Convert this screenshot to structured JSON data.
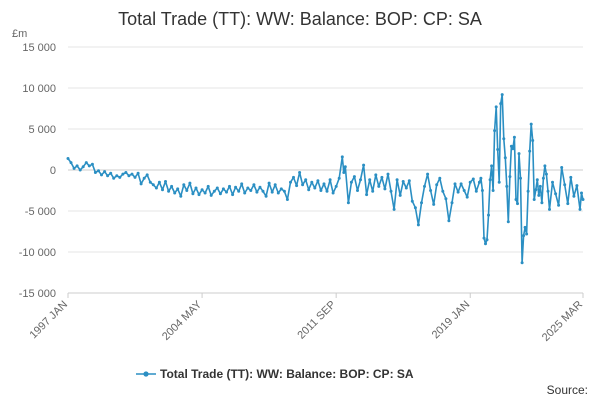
{
  "chart_data": {
    "type": "line",
    "title": "Total Trade (TT): WW: Balance: BOP: CP: SA",
    "unit_label": "£m",
    "source_label": "Source:",
    "xlabel": "",
    "ylabel": "",
    "ylim": [
      -15000,
      15000
    ],
    "y_ticks": [
      15000,
      10000,
      5000,
      0,
      -5000,
      -10000,
      -15000
    ],
    "y_tick_labels": [
      "15 000",
      "10 000",
      "5 000",
      "0",
      "-5 000",
      "-10 000",
      "-15 000"
    ],
    "x_range": [
      "1997-01",
      "2025-03"
    ],
    "x_ticks": [
      "1997-01",
      "2004-05",
      "2011-09",
      "2019-01",
      "2025-03"
    ],
    "x_tick_labels": [
      "1997 JAN",
      "2004 MAY",
      "2011 SEP",
      "2019 JAN",
      "2025 MAR"
    ],
    "grid": true,
    "legend_position": "bottom-center",
    "colors": {
      "series": "#2b8fc3",
      "text": "#333333",
      "muted": "#666666",
      "grid": "#e6e6e6"
    },
    "series": [
      {
        "name": "Total Trade (TT): WW: Balance: BOP: CP: SA",
        "points": [
          [
            "1997-01",
            1400
          ],
          [
            "1997-03",
            900
          ],
          [
            "1997-05",
            200
          ],
          [
            "1997-07",
            500
          ],
          [
            "1997-09",
            0
          ],
          [
            "1997-11",
            400
          ],
          [
            "1998-01",
            900
          ],
          [
            "1998-03",
            500
          ],
          [
            "1998-05",
            700
          ],
          [
            "1998-07",
            -300
          ],
          [
            "1998-09",
            -100
          ],
          [
            "1998-11",
            -600
          ],
          [
            "1999-01",
            -200
          ],
          [
            "1999-03",
            -700
          ],
          [
            "1999-05",
            -400
          ],
          [
            "1999-07",
            -1000
          ],
          [
            "1999-09",
            -700
          ],
          [
            "1999-11",
            -900
          ],
          [
            "2000-01",
            -500
          ],
          [
            "2000-03",
            -300
          ],
          [
            "2000-05",
            -700
          ],
          [
            "2000-07",
            -500
          ],
          [
            "2000-09",
            -900
          ],
          [
            "2000-11",
            -400
          ],
          [
            "2001-01",
            -1700
          ],
          [
            "2001-03",
            -1000
          ],
          [
            "2001-05",
            -600
          ],
          [
            "2001-07",
            -1500
          ],
          [
            "2001-09",
            -1800
          ],
          [
            "2001-11",
            -2200
          ],
          [
            "2002-01",
            -1500
          ],
          [
            "2002-03",
            -2400
          ],
          [
            "2002-05",
            -1400
          ],
          [
            "2002-07",
            -2600
          ],
          [
            "2002-09",
            -2000
          ],
          [
            "2002-11",
            -2800
          ],
          [
            "2003-01",
            -2300
          ],
          [
            "2003-03",
            -3200
          ],
          [
            "2003-05",
            -1800
          ],
          [
            "2003-07",
            -2500
          ],
          [
            "2003-09",
            -1600
          ],
          [
            "2003-11",
            -2900
          ],
          [
            "2004-01",
            -2200
          ],
          [
            "2004-03",
            -3000
          ],
          [
            "2004-05",
            -2400
          ],
          [
            "2004-07",
            -2800
          ],
          [
            "2004-09",
            -2000
          ],
          [
            "2004-11",
            -3100
          ],
          [
            "2005-01",
            -2600
          ],
          [
            "2005-03",
            -2200
          ],
          [
            "2005-05",
            -2900
          ],
          [
            "2005-07",
            -2300
          ],
          [
            "2005-09",
            -2700
          ],
          [
            "2005-11",
            -2000
          ],
          [
            "2006-01",
            -3000
          ],
          [
            "2006-03",
            -2100
          ],
          [
            "2006-05",
            -2600
          ],
          [
            "2006-07",
            -1700
          ],
          [
            "2006-09",
            -2800
          ],
          [
            "2006-11",
            -2200
          ],
          [
            "2007-01",
            -2500
          ],
          [
            "2007-03",
            -1800
          ],
          [
            "2007-05",
            -2700
          ],
          [
            "2007-07",
            -2100
          ],
          [
            "2007-09",
            -2600
          ],
          [
            "2007-11",
            -3200
          ],
          [
            "2008-01",
            -1600
          ],
          [
            "2008-03",
            -2700
          ],
          [
            "2008-05",
            -1800
          ],
          [
            "2008-07",
            -2800
          ],
          [
            "2008-09",
            -2300
          ],
          [
            "2008-11",
            -2600
          ],
          [
            "2009-01",
            -3600
          ],
          [
            "2009-03",
            -1500
          ],
          [
            "2009-05",
            -900
          ],
          [
            "2009-07",
            -1900
          ],
          [
            "2009-09",
            -300
          ],
          [
            "2009-11",
            -1800
          ],
          [
            "2010-01",
            -1200
          ],
          [
            "2010-03",
            -2400
          ],
          [
            "2010-05",
            -1500
          ],
          [
            "2010-07",
            -2200
          ],
          [
            "2010-09",
            -1300
          ],
          [
            "2010-11",
            -2500
          ],
          [
            "2011-01",
            -1700
          ],
          [
            "2011-03",
            -2600
          ],
          [
            "2011-05",
            -1200
          ],
          [
            "2011-07",
            -2800
          ],
          [
            "2011-09",
            -2000
          ],
          [
            "2011-11",
            -1000
          ],
          [
            "2012-01",
            1600
          ],
          [
            "2012-02",
            -300
          ],
          [
            "2012-03",
            400
          ],
          [
            "2012-05",
            -4000
          ],
          [
            "2012-07",
            -1500
          ],
          [
            "2012-09",
            -800
          ],
          [
            "2012-11",
            -2500
          ],
          [
            "2013-01",
            -1200
          ],
          [
            "2013-03",
            600
          ],
          [
            "2013-05",
            -3000
          ],
          [
            "2013-07",
            -1200
          ],
          [
            "2013-09",
            -2600
          ],
          [
            "2013-11",
            -600
          ],
          [
            "2014-01",
            -2000
          ],
          [
            "2014-03",
            -900
          ],
          [
            "2014-05",
            -2300
          ],
          [
            "2014-07",
            -500
          ],
          [
            "2014-09",
            -2600
          ],
          [
            "2014-11",
            -4800
          ],
          [
            "2015-01",
            -1200
          ],
          [
            "2015-03",
            -3100
          ],
          [
            "2015-05",
            -1400
          ],
          [
            "2015-07",
            -2200
          ],
          [
            "2015-09",
            -1300
          ],
          [
            "2015-11",
            -3800
          ],
          [
            "2016-01",
            -4600
          ],
          [
            "2016-03",
            -6700
          ],
          [
            "2016-05",
            -4000
          ],
          [
            "2016-07",
            -2000
          ],
          [
            "2016-09",
            -500
          ],
          [
            "2016-11",
            -2500
          ],
          [
            "2017-01",
            -4200
          ],
          [
            "2017-03",
            -1800
          ],
          [
            "2017-05",
            -1000
          ],
          [
            "2017-07",
            -2600
          ],
          [
            "2017-09",
            -3500
          ],
          [
            "2017-11",
            -6200
          ],
          [
            "2018-01",
            -4000
          ],
          [
            "2018-03",
            -1700
          ],
          [
            "2018-05",
            -2700
          ],
          [
            "2018-07",
            -1700
          ],
          [
            "2018-09",
            -2500
          ],
          [
            "2018-11",
            -3300
          ],
          [
            "2019-01",
            -1500
          ],
          [
            "2019-03",
            -1100
          ],
          [
            "2019-05",
            -2600
          ],
          [
            "2019-07",
            -1500
          ],
          [
            "2019-08",
            -1000
          ],
          [
            "2019-09",
            -2500
          ],
          [
            "2019-10",
            -8300
          ],
          [
            "2019-11",
            -9000
          ],
          [
            "2019-12",
            -8500
          ],
          [
            "2020-01",
            -5500
          ],
          [
            "2020-02",
            -1200
          ],
          [
            "2020-03",
            500
          ],
          [
            "2020-04",
            -2500
          ],
          [
            "2020-05",
            4800
          ],
          [
            "2020-06",
            7700
          ],
          [
            "2020-07",
            2500
          ],
          [
            "2020-08",
            -1500
          ],
          [
            "2020-09",
            8100
          ],
          [
            "2020-10",
            9200
          ],
          [
            "2020-11",
            3800
          ],
          [
            "2020-12",
            1500
          ],
          [
            "2021-01",
            -2000
          ],
          [
            "2021-02",
            -6300
          ],
          [
            "2021-03",
            -800
          ],
          [
            "2021-04",
            2900
          ],
          [
            "2021-05",
            2600
          ],
          [
            "2021-06",
            4000
          ],
          [
            "2021-07",
            -3600
          ],
          [
            "2021-08",
            -4100
          ],
          [
            "2021-09",
            2000
          ],
          [
            "2021-10",
            -1000
          ],
          [
            "2021-11",
            -11300
          ],
          [
            "2021-12",
            -8000
          ],
          [
            "2022-01",
            -7000
          ],
          [
            "2022-02",
            -7800
          ],
          [
            "2022-03",
            -2600
          ],
          [
            "2022-04",
            2300
          ],
          [
            "2022-05",
            5600
          ],
          [
            "2022-06",
            3600
          ],
          [
            "2022-07",
            -3600
          ],
          [
            "2022-08",
            -2400
          ],
          [
            "2022-09",
            -1200
          ],
          [
            "2022-10",
            -3100
          ],
          [
            "2022-11",
            -2000
          ],
          [
            "2022-12",
            -4000
          ],
          [
            "2023-01",
            -1000
          ],
          [
            "2023-02",
            500
          ],
          [
            "2023-03",
            -500
          ],
          [
            "2023-04",
            -2600
          ],
          [
            "2023-05",
            -4800
          ],
          [
            "2023-07",
            -1500
          ],
          [
            "2023-09",
            -2900
          ],
          [
            "2023-11",
            -4300
          ],
          [
            "2024-01",
            300
          ],
          [
            "2024-03",
            -1800
          ],
          [
            "2024-05",
            -4100
          ],
          [
            "2024-07",
            -900
          ],
          [
            "2024-09",
            -3200
          ],
          [
            "2024-11",
            -1900
          ],
          [
            "2025-01",
            -4800
          ],
          [
            "2025-02",
            -2800
          ],
          [
            "2025-03",
            -3600
          ]
        ]
      }
    ]
  }
}
